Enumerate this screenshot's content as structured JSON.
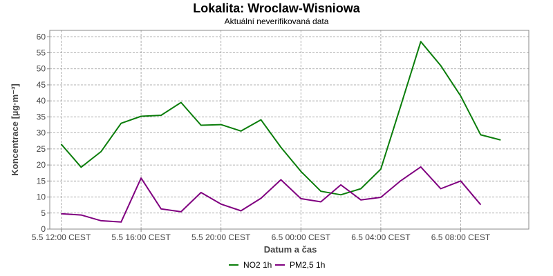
{
  "chart_data": {
    "type": "line",
    "title": "Lokalita: Wroclaw-Wisniowa",
    "subtitle": "Aktuální neverifikovaná data",
    "xlabel": "Datum a čas",
    "ylabel": "Koncentrace [µg·m⁻³]",
    "ylim": [
      0,
      62
    ],
    "yticks": [
      0,
      5,
      10,
      15,
      20,
      25,
      30,
      35,
      40,
      45,
      50,
      55,
      60
    ],
    "xlim": [
      0,
      23
    ],
    "xticks": [
      {
        "x": 0,
        "label": "5.5 12:00 CEST"
      },
      {
        "x": 4,
        "label": "5.5 16:00 CEST"
      },
      {
        "x": 8,
        "label": "5.5 20:00 CEST"
      },
      {
        "x": 12,
        "label": "6.5 00:00 CEST"
      },
      {
        "x": 16,
        "label": "6.5 04:00 CEST"
      },
      {
        "x": 20,
        "label": "6.5 08:00 CEST"
      }
    ],
    "grid": true,
    "legend_position": "bottom",
    "series": [
      {
        "name": "NO2 1h",
        "color": "#0a7d0a",
        "x": [
          0,
          1,
          2,
          3,
          4,
          5,
          6,
          7,
          8,
          9,
          10,
          11,
          12,
          13,
          14,
          15,
          16,
          17,
          18,
          19,
          20,
          21,
          22
        ],
        "values": [
          26.5,
          19.3,
          24.2,
          33.0,
          35.2,
          35.5,
          39.5,
          32.4,
          32.6,
          30.6,
          34.1,
          25.5,
          18.0,
          11.8,
          10.7,
          12.6,
          18.7,
          38.5,
          58.5,
          51.0,
          41.5,
          29.4,
          27.8
        ]
      },
      {
        "name": "PM2,5 1h",
        "color": "#800080",
        "x": [
          0,
          1,
          2,
          3,
          4,
          5,
          6,
          7,
          8,
          9,
          10,
          11,
          12,
          13,
          14,
          15,
          16,
          17,
          18,
          19,
          20,
          21
        ],
        "values": [
          4.8,
          4.4,
          2.6,
          2.2,
          15.9,
          6.3,
          5.4,
          11.4,
          7.8,
          5.7,
          9.6,
          15.4,
          9.5,
          8.5,
          13.8,
          9.1,
          9.9,
          15.1,
          19.4,
          12.6,
          15.0,
          7.6
        ]
      }
    ]
  }
}
